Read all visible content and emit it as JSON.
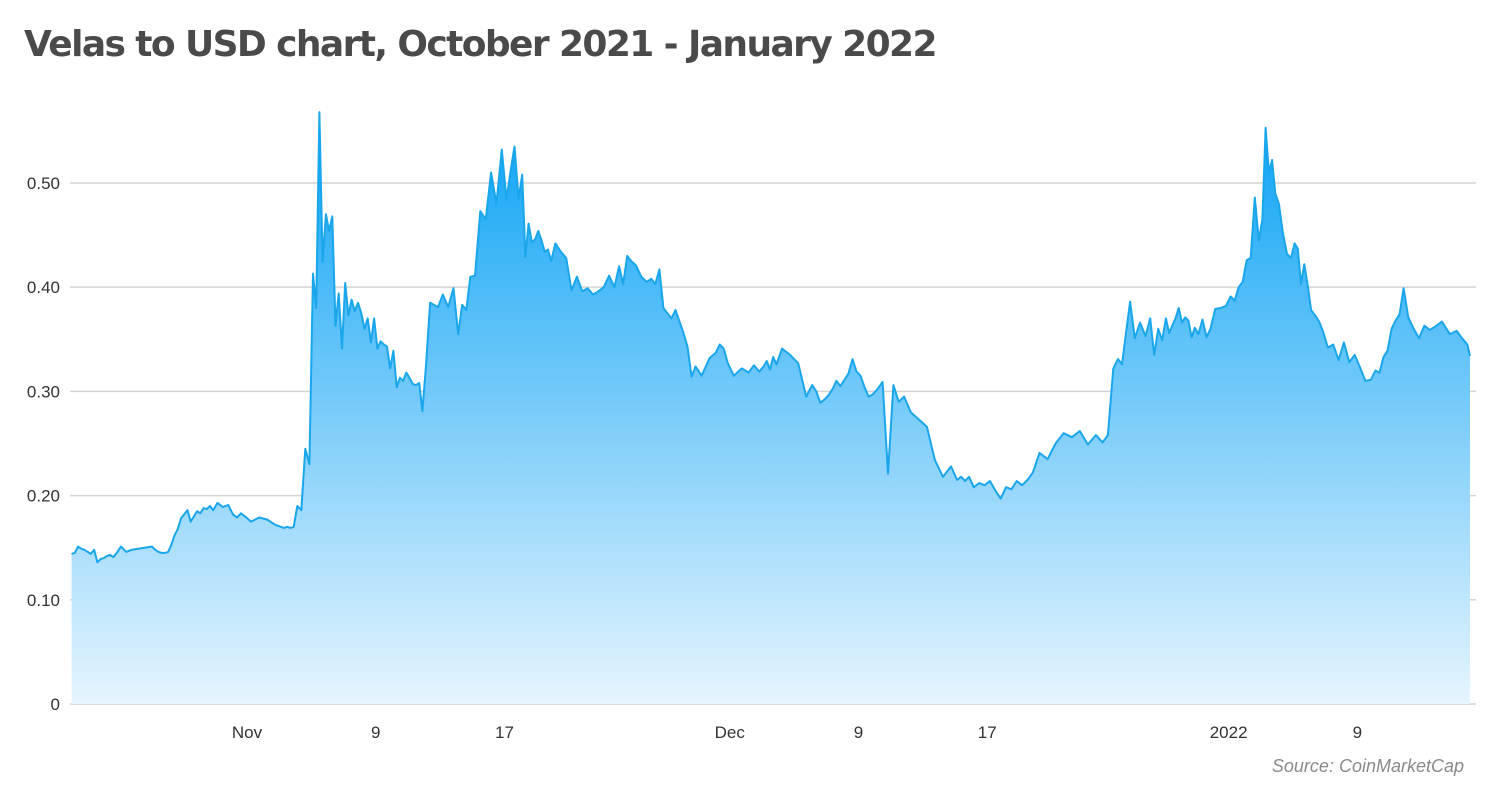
{
  "chart_data": {
    "type": "area",
    "title": "Velas to USD chart, October 2021 - January 2022",
    "source": "Source: CoinMarketCap",
    "xlabel": "",
    "ylabel": "",
    "ylim": [
      0,
      0.57
    ],
    "y_ticks": [
      {
        "value": 0,
        "label": "0"
      },
      {
        "value": 0.1,
        "label": "0.10"
      },
      {
        "value": 0.2,
        "label": "0.20"
      },
      {
        "value": 0.3,
        "label": "0.30"
      },
      {
        "value": 0.4,
        "label": "0.40"
      },
      {
        "value": 0.5,
        "label": "0.50"
      }
    ],
    "x_range": [
      "2021-10-21",
      "2022-01-16"
    ],
    "x_ticks": [
      {
        "date": "2021-11-01",
        "label": "Nov"
      },
      {
        "date": "2021-11-09",
        "label": "9"
      },
      {
        "date": "2021-11-17",
        "label": "17"
      },
      {
        "date": "2021-12-01",
        "label": "Dec"
      },
      {
        "date": "2021-12-09",
        "label": "9"
      },
      {
        "date": "2021-12-17",
        "label": "17"
      },
      {
        "date": "2022-01-01",
        "label": "2022"
      },
      {
        "date": "2022-01-09",
        "label": "9"
      }
    ],
    "grid": "horizontal",
    "colors": {
      "line": "#1aa6ea",
      "fill_top": "#0aa2f5",
      "fill_bottom": "#e6f5fe",
      "grid": "#d4d4d4"
    },
    "series": [
      {
        "x": [
          "2021-10-21",
          "2021-10-21",
          "2021-10-21",
          "2021-10-21",
          "2021-10-21",
          "2021-10-22",
          "2021-10-22",
          "2021-10-22",
          "2021-10-22",
          "2021-10-22",
          "2021-10-23",
          "2021-10-23",
          "2021-10-23",
          "2021-10-23",
          "2021-10-23",
          "2021-10-24",
          "2021-10-24",
          "2021-10-24",
          "2021-10-26",
          "2021-10-26",
          "2021-10-26",
          "2021-10-26",
          "2021-10-26",
          "2021-10-27",
          "2021-10-27",
          "2021-10-27",
          "2021-10-27",
          "2021-10-27",
          "2021-10-28",
          "2021-10-28",
          "2021-10-28",
          "2021-10-28",
          "2021-10-28",
          "2021-10-29",
          "2021-10-29",
          "2021-10-29",
          "2021-10-29",
          "2021-10-29",
          "2021-10-30",
          "2021-10-30",
          "2021-10-30",
          "2021-10-31",
          "2021-10-31",
          "2021-10-31",
          "2021-10-31",
          "2021-11-01",
          "2021-11-01",
          "2021-11-02",
          "2021-11-02",
          "2021-11-03",
          "2021-11-03",
          "2021-11-03",
          "2021-11-03",
          "2021-11-03",
          "2021-11-04",
          "2021-11-04",
          "2021-11-04",
          "2021-11-04",
          "2021-11-05",
          "2021-11-05",
          "2021-11-05",
          "2021-11-05",
          "2021-11-05",
          "2021-11-06",
          "2021-11-06",
          "2021-11-06",
          "2021-11-06",
          "2021-11-06",
          "2021-11-07",
          "2021-11-07",
          "2021-11-07",
          "2021-11-07",
          "2021-11-07",
          "2021-11-08",
          "2021-11-08",
          "2021-11-08",
          "2021-11-08",
          "2021-11-08",
          "2021-11-09",
          "2021-11-09",
          "2021-11-09",
          "2021-11-09",
          "2021-11-09",
          "2021-11-10",
          "2021-11-10",
          "2021-11-10",
          "2021-11-10",
          "2021-11-10",
          "2021-11-11",
          "2021-11-11",
          "2021-11-11",
          "2021-11-11",
          "2021-11-11",
          "2021-11-12",
          "2021-11-12",
          "2021-11-12",
          "2021-11-12",
          "2021-11-13",
          "2021-11-13",
          "2021-11-13",
          "2021-11-14",
          "2021-11-14",
          "2021-11-14",
          "2021-11-14",
          "2021-11-15",
          "2021-11-15",
          "2021-11-15",
          "2021-11-16",
          "2021-11-16",
          "2021-11-16",
          "2021-11-17",
          "2021-11-17",
          "2021-11-17",
          "2021-11-17",
          "2021-11-18",
          "2021-11-18",
          "2021-11-18",
          "2021-11-18",
          "2021-11-18",
          "2021-11-19",
          "2021-11-19",
          "2021-11-19",
          "2021-11-19",
          "2021-11-19",
          "2021-11-20",
          "2021-11-20",
          "2021-11-20",
          "2021-11-21",
          "2021-11-21",
          "2021-11-21",
          "2021-11-22",
          "2021-11-22",
          "2021-11-22",
          "2021-11-23",
          "2021-11-23",
          "2021-11-23",
          "2021-11-24",
          "2021-11-24",
          "2021-11-24",
          "2021-11-24",
          "2021-11-25",
          "2021-11-25",
          "2021-11-25",
          "2021-11-26",
          "2021-11-26",
          "2021-11-26",
          "2021-11-26",
          "2021-11-27",
          "2021-11-27",
          "2021-11-27",
          "2021-11-27",
          "2021-11-28",
          "2021-11-28",
          "2021-11-28",
          "2021-11-28",
          "2021-11-29",
          "2021-11-29",
          "2021-11-30",
          "2021-11-30",
          "2021-11-30",
          "2021-11-30",
          "2021-12-01",
          "2021-12-01",
          "2021-12-02",
          "2021-12-02",
          "2021-12-02",
          "2021-12-03",
          "2021-12-03",
          "2021-12-03",
          "2021-12-03",
          "2021-12-03",
          "2021-12-04",
          "2021-12-04",
          "2021-12-05",
          "2021-12-05",
          "2021-12-06",
          "2021-12-06",
          "2021-12-06",
          "2021-12-06",
          "2021-12-07",
          "2021-12-07",
          "2021-12-07",
          "2021-12-07",
          "2021-12-08",
          "2021-12-08",
          "2021-12-08",
          "2021-12-08",
          "2021-12-09",
          "2021-12-09",
          "2021-12-09",
          "2021-12-09",
          "2021-12-10",
          "2021-12-10",
          "2021-12-10",
          "2021-12-11",
          "2021-12-11",
          "2021-12-11",
          "2021-12-12",
          "2021-12-12",
          "2021-12-13",
          "2021-12-13",
          "2021-12-14",
          "2021-12-14",
          "2021-12-15",
          "2021-12-15",
          "2021-12-15",
          "2021-12-15",
          "2021-12-16",
          "2021-12-16",
          "2021-12-16",
          "2021-12-17",
          "2021-12-17",
          "2021-12-17",
          "2021-12-18",
          "2021-12-18",
          "2021-12-18",
          "2021-12-19",
          "2021-12-19",
          "2021-12-19",
          "2021-12-20",
          "2021-12-20",
          "2021-12-21",
          "2021-12-21",
          "2021-12-22",
          "2021-12-22",
          "2021-12-23",
          "2021-12-23",
          "2021-12-24",
          "2021-12-24",
          "2021-12-24",
          "2021-12-25",
          "2021-12-25",
          "2021-12-25",
          "2021-12-25",
          "2021-12-26",
          "2021-12-26",
          "2021-12-26",
          "2021-12-27",
          "2021-12-27",
          "2021-12-27",
          "2021-12-27",
          "2021-12-28",
          "2021-12-28",
          "2021-12-28",
          "2021-12-28",
          "2021-12-28",
          "2021-12-29",
          "2021-12-29",
          "2021-12-29",
          "2021-12-29",
          "2021-12-29",
          "2021-12-30",
          "2021-12-30",
          "2021-12-30",
          "2021-12-30",
          "2021-12-31",
          "2021-12-31",
          "2021-12-31",
          "2022-01-01",
          "2022-01-01",
          "2022-01-01",
          "2022-01-01",
          "2022-01-02",
          "2022-01-02",
          "2022-01-02",
          "2022-01-02",
          "2022-01-03",
          "2022-01-03",
          "2022-01-03",
          "2022-01-03",
          "2022-01-03",
          "2022-01-04",
          "2022-01-04",
          "2022-01-04",
          "2022-01-04",
          "2022-01-05",
          "2022-01-05",
          "2022-01-05",
          "2022-01-05",
          "2022-01-05",
          "2022-01-06",
          "2022-01-06",
          "2022-01-06",
          "2022-01-06",
          "2022-01-07",
          "2022-01-07",
          "2022-01-07",
          "2022-01-08",
          "2022-01-08",
          "2022-01-08",
          "2022-01-09",
          "2022-01-09",
          "2022-01-09",
          "2022-01-10",
          "2022-01-10",
          "2022-01-10",
          "2022-01-10",
          "2022-01-11",
          "2022-01-11",
          "2022-01-11",
          "2022-01-11",
          "2022-01-12",
          "2022-01-12",
          "2022-01-12",
          "2022-01-13",
          "2022-01-13",
          "2022-01-13",
          "2022-01-14",
          "2022-01-14",
          "2022-01-15",
          "2022-01-15",
          "2022-01-15",
          "2022-01-16"
        ],
        "values": [
          0.144,
          0.145,
          0.151,
          0.149,
          0.148,
          0.146,
          0.144,
          0.148,
          0.136,
          0.139,
          0.14,
          0.142,
          0.143,
          0.141,
          0.145,
          0.151,
          0.146,
          0.148,
          0.151,
          0.148,
          0.146,
          0.145,
          0.145,
          0.146,
          0.153,
          0.162,
          0.168,
          0.178,
          0.182,
          0.186,
          0.175,
          0.18,
          0.185,
          0.183,
          0.188,
          0.187,
          0.19,
          0.186,
          0.193,
          0.189,
          0.191,
          0.182,
          0.179,
          0.183,
          0.18,
          0.175,
          0.179,
          0.177,
          0.172,
          0.17,
          0.169,
          0.17,
          0.169,
          0.17,
          0.19,
          0.186,
          0.245,
          0.23,
          0.413,
          0.38,
          0.568,
          0.424,
          0.47,
          0.454,
          0.468,
          0.363,
          0.394,
          0.341,
          0.404,
          0.373,
          0.388,
          0.377,
          0.385,
          0.375,
          0.36,
          0.37,
          0.347,
          0.37,
          0.341,
          0.348,
          0.345,
          0.343,
          0.322,
          0.339,
          0.304,
          0.313,
          0.31,
          0.318,
          0.313,
          0.307,
          0.306,
          0.308,
          0.281,
          0.325,
          0.385,
          0.383,
          0.381,
          0.393,
          0.381,
          0.399,
          0.355,
          0.383,
          0.378,
          0.41,
          0.411,
          0.473,
          0.465,
          0.51,
          0.48,
          0.532,
          0.484,
          0.511,
          0.535,
          0.485,
          0.508,
          0.429,
          0.461,
          0.443,
          0.446,
          0.454,
          0.445,
          0.434,
          0.436,
          0.425,
          0.442,
          0.434,
          0.428,
          0.397,
          0.41,
          0.396,
          0.399,
          0.393,
          0.396,
          0.4,
          0.411,
          0.4,
          0.42,
          0.403,
          0.43,
          0.425,
          0.421,
          0.41,
          0.405,
          0.408,
          0.403,
          0.417,
          0.38,
          0.375,
          0.37,
          0.378,
          0.367,
          0.356,
          0.343,
          0.314,
          0.324,
          0.315,
          0.332,
          0.337,
          0.345,
          0.341,
          0.327,
          0.315,
          0.322,
          0.318,
          0.325,
          0.319,
          0.324,
          0.329,
          0.321,
          0.333,
          0.326,
          0.341,
          0.335,
          0.327,
          0.295,
          0.306,
          0.3,
          0.289,
          0.292,
          0.296,
          0.302,
          0.31,
          0.305,
          0.311,
          0.317,
          0.331,
          0.319,
          0.315,
          0.304,
          0.295,
          0.297,
          0.302,
          0.309,
          0.221,
          0.306,
          0.29,
          0.295,
          0.28,
          0.273,
          0.266,
          0.234,
          0.218,
          0.228,
          0.215,
          0.218,
          0.214,
          0.218,
          0.208,
          0.212,
          0.21,
          0.214,
          0.205,
          0.197,
          0.208,
          0.206,
          0.214,
          0.21,
          0.215,
          0.222,
          0.241,
          0.235,
          0.25,
          0.26,
          0.256,
          0.262,
          0.249,
          0.258,
          0.251,
          0.258,
          0.322,
          0.331,
          0.326,
          0.356,
          0.386,
          0.351,
          0.366,
          0.353,
          0.37,
          0.335,
          0.36,
          0.349,
          0.37,
          0.356,
          0.363,
          0.37,
          0.38,
          0.366,
          0.371,
          0.368,
          0.352,
          0.361,
          0.355,
          0.369,
          0.352,
          0.36,
          0.379,
          0.38,
          0.382,
          0.391,
          0.387,
          0.4,
          0.405,
          0.426,
          0.428,
          0.486,
          0.445,
          0.465,
          0.553,
          0.51,
          0.522,
          0.49,
          0.48,
          0.452,
          0.432,
          0.428,
          0.442,
          0.437,
          0.403,
          0.422,
          0.403,
          0.378,
          0.373,
          0.367,
          0.357,
          0.342,
          0.345,
          0.33,
          0.347,
          0.328,
          0.335,
          0.323,
          0.31,
          0.311,
          0.32,
          0.318,
          0.333,
          0.339,
          0.36,
          0.368,
          0.374,
          0.399,
          0.371,
          0.36,
          0.351,
          0.363,
          0.359,
          0.362,
          0.367,
          0.355,
          0.358,
          0.351,
          0.345,
          0.334
        ]
      }
    ]
  }
}
